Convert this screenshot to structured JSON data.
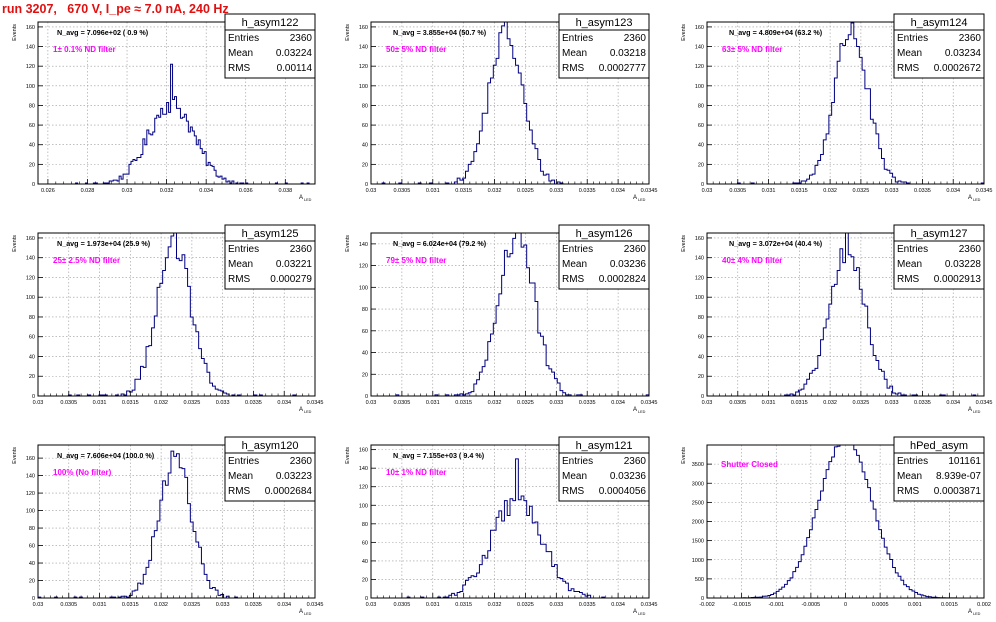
{
  "page": {
    "title": "run 3207,   670 V, I_pe ≈ 7.0 nA, 240 Hz"
  },
  "labels": {
    "y_axis": "Events",
    "x_axis": "A",
    "x_axis_sub": "LED",
    "entries": "Entries",
    "mean": "Mean",
    "rms": "RMS"
  },
  "colors": {
    "histogram": "#000080",
    "title": "#e01010",
    "annotation": "#ff00ff",
    "grid": "#999999",
    "frame": "#000000"
  },
  "chart_data": [
    {
      "type": "histogram",
      "name": "h_asym122",
      "navg_text": "N_avg = 7.096e+02 ( 0.9 %)",
      "filter_text": "1± 0.1% ND filter",
      "stats": {
        "entries": "2360",
        "mean": "0.03224",
        "rms": "0.00114"
      },
      "xlim": [
        0.0255,
        0.0395
      ],
      "ylim": [
        0,
        165
      ],
      "xticks": [
        0.026,
        0.028,
        0.03,
        0.032,
        0.034,
        0.036,
        0.038
      ],
      "xtick_labels": [
        "0.026",
        "0.028",
        "0.03",
        "0.032",
        "0.034",
        "0.036",
        "0.038"
      ],
      "yticks": [
        0,
        20,
        40,
        60,
        80,
        100,
        120,
        140,
        160
      ],
      "dist": {
        "mean": 0.03224,
        "sigma": 0.00114,
        "n": 2360,
        "peak": 122,
        "nbins": 140
      }
    },
    {
      "type": "histogram",
      "name": "h_asym123",
      "navg_text": "N_avg = 3.855e+04 (50.7 %)",
      "filter_text": "50± 5% ND filter",
      "stats": {
        "entries": "2360",
        "mean": "0.03218",
        "rms": "0.0002777"
      },
      "xlim": [
        0.03,
        0.0345
      ],
      "ylim": [
        0,
        165
      ],
      "xticks": [
        0.03,
        0.0305,
        0.031,
        0.0315,
        0.032,
        0.0325,
        0.033,
        0.0335,
        0.034,
        0.0345
      ],
      "xtick_labels": [
        "0.03",
        "0.0305",
        "0.031",
        "0.0315",
        "0.032",
        "0.0325",
        "0.033",
        "0.0335",
        "0.034",
        "0.0345"
      ],
      "yticks": [
        0,
        20,
        40,
        60,
        80,
        100,
        120,
        140,
        160
      ],
      "dist": {
        "mean": 0.03218,
        "sigma": 0.0002777,
        "n": 2360,
        "peak": 182,
        "nbins": 100
      }
    },
    {
      "type": "histogram",
      "name": "h_asym124",
      "navg_text": "N_avg = 4.809e+04 (63.2 %)",
      "filter_text": "63± 5% ND filter",
      "stats": {
        "entries": "2360",
        "mean": "0.03234",
        "rms": "0.0002672"
      },
      "xlim": [
        0.03,
        0.0345
      ],
      "ylim": [
        0,
        165
      ],
      "xticks": [
        0.03,
        0.0305,
        0.031,
        0.0315,
        0.032,
        0.0325,
        0.033,
        0.0335,
        0.034,
        0.0345
      ],
      "xtick_labels": [
        "0.03",
        "0.0305",
        "0.031",
        "0.0315",
        "0.032",
        "0.0325",
        "0.033",
        "0.0335",
        "0.034",
        "0.0345"
      ],
      "yticks": [
        0,
        20,
        40,
        60,
        80,
        100,
        120,
        140,
        160
      ],
      "dist": {
        "mean": 0.03234,
        "sigma": 0.0002672,
        "n": 2360,
        "peak": 160,
        "nbins": 100
      }
    },
    {
      "type": "histogram",
      "name": "h_asym125",
      "navg_text": "N_avg = 1.973e+04 (25.9 %)",
      "filter_text": "25± 2.5% ND filter",
      "stats": {
        "entries": "2360",
        "mean": "0.03221",
        "rms": "0.000279"
      },
      "xlim": [
        0.03,
        0.0345
      ],
      "ylim": [
        0,
        165
      ],
      "xticks": [
        0.03,
        0.0305,
        0.031,
        0.0315,
        0.032,
        0.0325,
        0.033,
        0.0335,
        0.034,
        0.0345
      ],
      "xtick_labels": [
        "0.03",
        "0.0305",
        "0.031",
        "0.0315",
        "0.032",
        "0.0325",
        "0.033",
        "0.0335",
        "0.034",
        "0.0345"
      ],
      "yticks": [
        0,
        20,
        40,
        60,
        80,
        100,
        120,
        140,
        160
      ],
      "dist": {
        "mean": 0.03221,
        "sigma": 0.000279,
        "n": 2360,
        "peak": 175,
        "nbins": 100
      }
    },
    {
      "type": "histogram",
      "name": "h_asym126",
      "navg_text": "N_avg = 6.024e+04 (79.2 %)",
      "filter_text": "79± 5% ND filter",
      "stats": {
        "entries": "2360",
        "mean": "0.03236",
        "rms": "0.0002824"
      },
      "xlim": [
        0.03,
        0.0345
      ],
      "ylim": [
        0,
        150
      ],
      "xticks": [
        0.03,
        0.0305,
        0.031,
        0.0315,
        0.032,
        0.0325,
        0.033,
        0.0335,
        0.034,
        0.0345
      ],
      "xtick_labels": [
        "0.03",
        "0.0305",
        "0.031",
        "0.0315",
        "0.032",
        "0.0325",
        "0.033",
        "0.0335",
        "0.034",
        "0.0345"
      ],
      "yticks": [
        0,
        20,
        40,
        60,
        80,
        100,
        120,
        140
      ],
      "dist": {
        "mean": 0.03236,
        "sigma": 0.0002824,
        "n": 2360,
        "peak": 152,
        "nbins": 100
      }
    },
    {
      "type": "histogram",
      "name": "h_asym127",
      "navg_text": "N_avg = 3.072e+04 (40.4 %)",
      "filter_text": "40± 4% ND filter",
      "stats": {
        "entries": "2360",
        "mean": "0.03228",
        "rms": "0.0002913"
      },
      "xlim": [
        0.03,
        0.0345
      ],
      "ylim": [
        0,
        165
      ],
      "xticks": [
        0.03,
        0.0305,
        0.031,
        0.0315,
        0.032,
        0.0325,
        0.033,
        0.0335,
        0.034,
        0.0345
      ],
      "xtick_labels": [
        "0.03",
        "0.0305",
        "0.031",
        "0.0315",
        "0.032",
        "0.0325",
        "0.033",
        "0.0335",
        "0.034",
        "0.0345"
      ],
      "yticks": [
        0,
        20,
        40,
        60,
        80,
        100,
        120,
        140,
        160
      ],
      "dist": {
        "mean": 0.03228,
        "sigma": 0.0002913,
        "n": 2360,
        "peak": 175,
        "nbins": 100
      }
    },
    {
      "type": "histogram",
      "name": "h_asym120",
      "navg_text": "N_avg = 7.606e+04 (100.0 %)",
      "filter_text": "100% (No filter)",
      "stats": {
        "entries": "2360",
        "mean": "0.03223",
        "rms": "0.0002684"
      },
      "xlim": [
        0.03,
        0.0345
      ],
      "ylim": [
        0,
        175
      ],
      "xticks": [
        0.03,
        0.0305,
        0.031,
        0.0315,
        0.032,
        0.0325,
        0.033,
        0.0335,
        0.034,
        0.0345
      ],
      "xtick_labels": [
        "0.03",
        "0.0305",
        "0.031",
        "0.0315",
        "0.032",
        "0.0325",
        "0.033",
        "0.0335",
        "0.034",
        "0.0345"
      ],
      "yticks": [
        0,
        20,
        40,
        60,
        80,
        100,
        120,
        140,
        160
      ],
      "dist": {
        "mean": 0.03223,
        "sigma": 0.0002684,
        "n": 2360,
        "peak": 162,
        "nbins": 100
      }
    },
    {
      "type": "histogram",
      "name": "h_asym121",
      "navg_text": "N_avg = 7.155e+03 ( 9.4 %)",
      "filter_text": "10± 1% ND filter",
      "stats": {
        "entries": "2360",
        "mean": "0.03236",
        "rms": "0.0004056"
      },
      "xlim": [
        0.03,
        0.0345
      ],
      "ylim": [
        0,
        165
      ],
      "xticks": [
        0.03,
        0.0305,
        0.031,
        0.0315,
        0.032,
        0.0325,
        0.033,
        0.0335,
        0.034,
        0.0345
      ],
      "xtick_labels": [
        "0.03",
        "0.0305",
        "0.031",
        "0.0315",
        "0.032",
        "0.0325",
        "0.033",
        "0.0335",
        "0.034",
        "0.0345"
      ],
      "yticks": [
        0,
        20,
        40,
        60,
        80,
        100,
        120,
        140,
        160
      ],
      "dist": {
        "mean": 0.03236,
        "sigma": 0.0004056,
        "n": 2360,
        "peak": 150,
        "nbins": 100
      }
    },
    {
      "type": "histogram",
      "name": "hPed_asym",
      "navg_text": "",
      "filter_text": "Shutter Closed",
      "stats": {
        "entries": "101161",
        "mean": "8.939e-07",
        "rms": "0.0003871"
      },
      "xlim": [
        -0.002,
        0.002
      ],
      "ylim": [
        0,
        4000
      ],
      "xticks": [
        -0.002,
        -0.0015,
        -0.001,
        -0.0005,
        0,
        0.0005,
        0.001,
        0.0015,
        0.002
      ],
      "xtick_labels": [
        "-0.002",
        "-0.0015",
        "-0.001",
        "-0.0005",
        "0",
        "0.0005",
        "0.001",
        "0.0015",
        "0.002"
      ],
      "yticks": [
        0,
        500,
        1000,
        1500,
        2000,
        2500,
        3000,
        3500
      ],
      "dist": {
        "mean": 9e-07,
        "sigma": 0.0003871,
        "n": 101161,
        "peak": 3780,
        "nbins": 100
      }
    }
  ]
}
